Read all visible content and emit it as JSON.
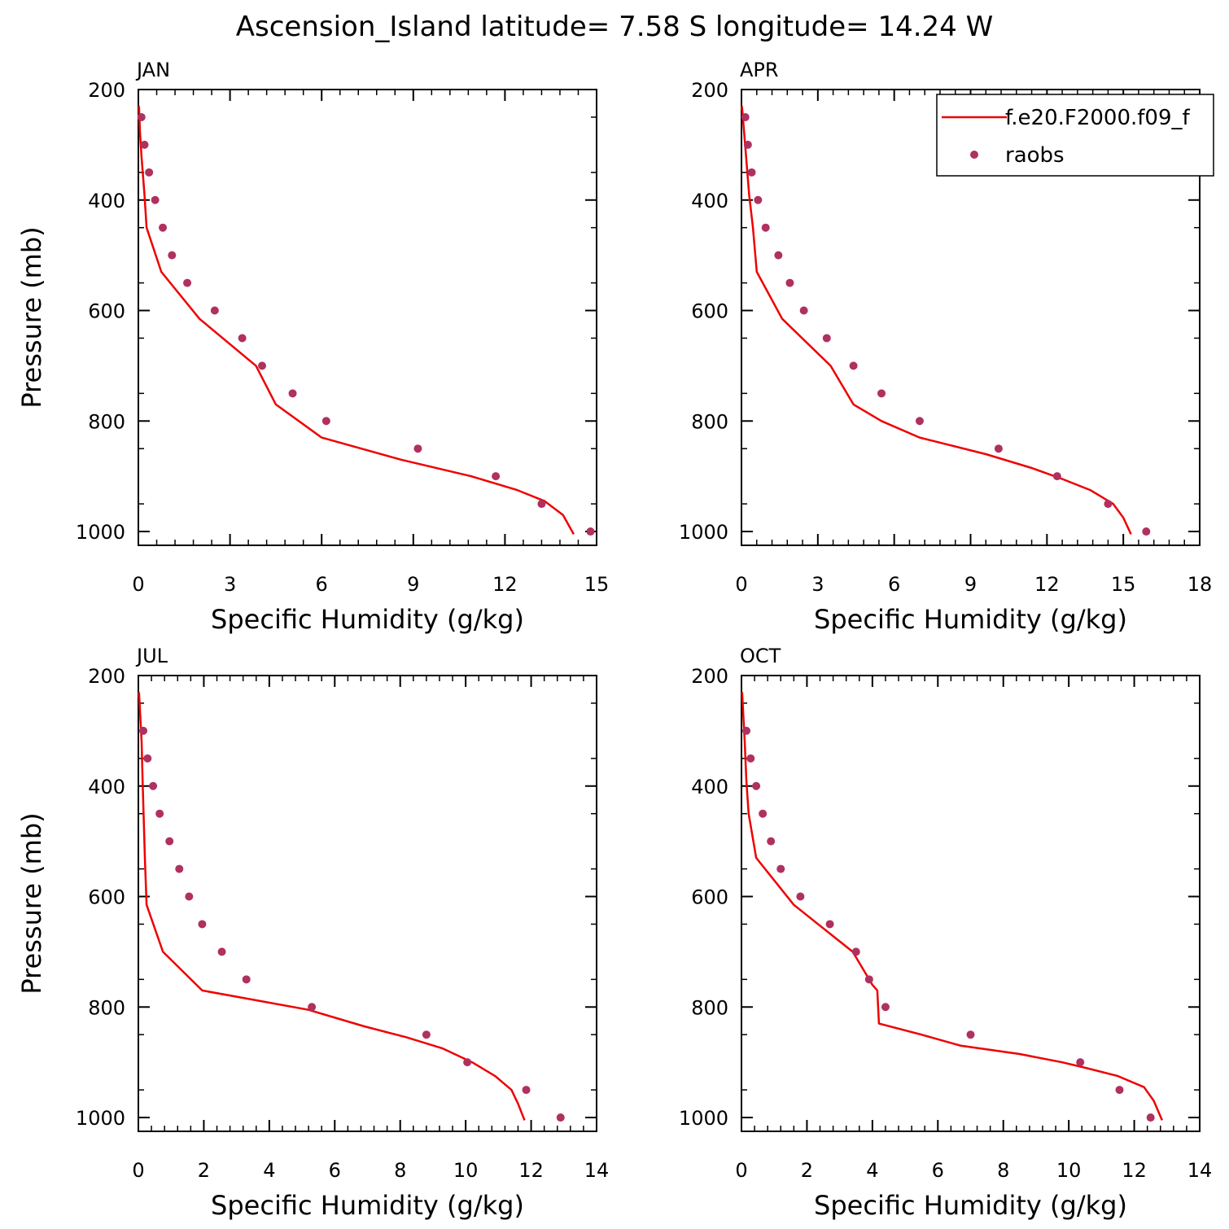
{
  "figure": {
    "title": "Ascension_Island  latitude= 7.58 S longitude= 14.24 W"
  },
  "colors": {
    "model_line": "#ee0000",
    "raobs_marker": "#b03060",
    "frame": "#000000"
  },
  "legend": {
    "placement": "top-right of APR panel (clipped at right edge)",
    "model_label": "f.e20.F2000.f09_f",
    "raobs_label": "raobs"
  },
  "chart_data": [
    {
      "type": "line",
      "panel_title": "JAN",
      "xlabel": "Specific Humidity (g/kg)",
      "ylabel": "Pressure (mb)",
      "xlim": [
        0,
        15
      ],
      "ylim": [
        200,
        1025
      ],
      "y_inverted": true,
      "xticks": [
        0,
        3,
        6,
        9,
        12,
        15
      ],
      "xtick_labels": [
        "0",
        "3",
        "6",
        "9",
        "12",
        "15"
      ],
      "yticks": [
        200,
        400,
        600,
        800,
        1000
      ],
      "ytick_labels": [
        "200",
        "400",
        "600",
        "800",
        "1000"
      ],
      "series": [
        {
          "kind": "line",
          "x": [
            0.02,
            0.05,
            0.1,
            0.2,
            0.27,
            0.75,
            2.0,
            3.85,
            4.5,
            6.0,
            8.6,
            10.9,
            12.4,
            13.3,
            13.9,
            14.25
          ],
          "y": [
            230,
            275,
            320,
            390,
            450,
            530,
            615,
            700,
            770,
            830,
            870,
            900,
            925,
            945,
            970,
            1005
          ]
        },
        {
          "kind": "scatter",
          "x": [
            0.1,
            0.2,
            0.35,
            0.55,
            0.8,
            1.1,
            1.6,
            2.5,
            3.4,
            4.05,
            5.05,
            6.15,
            9.15,
            11.7,
            13.2,
            14.8
          ],
          "y": [
            250,
            300,
            350,
            400,
            450,
            500,
            550,
            600,
            650,
            700,
            750,
            800,
            850,
            900,
            950,
            1000
          ]
        }
      ]
    },
    {
      "type": "line",
      "panel_title": "APR",
      "xlabel": "Specific Humidity (g/kg)",
      "ylabel": "",
      "xlim": [
        0,
        18
      ],
      "ylim": [
        200,
        1025
      ],
      "y_inverted": true,
      "xticks": [
        0,
        3,
        6,
        9,
        12,
        15,
        18
      ],
      "xtick_labels": [
        "0",
        "3",
        "6",
        "9",
        "12",
        "15",
        "18"
      ],
      "yticks": [
        200,
        400,
        600,
        800,
        1000
      ],
      "ytick_labels": [
        "200",
        "400",
        "600",
        "800",
        "1000"
      ],
      "series": [
        {
          "kind": "line",
          "x": [
            0.02,
            0.1,
            0.18,
            0.3,
            0.45,
            0.6,
            1.6,
            3.5,
            4.4,
            5.5,
            7.0,
            9.6,
            11.4,
            12.6,
            13.7,
            14.6,
            15.0,
            15.3
          ],
          "y": [
            230,
            275,
            320,
            390,
            450,
            530,
            615,
            700,
            770,
            800,
            830,
            860,
            885,
            905,
            925,
            950,
            975,
            1005
          ]
        },
        {
          "kind": "scatter",
          "x": [
            0.15,
            0.25,
            0.4,
            0.65,
            0.95,
            1.45,
            1.9,
            2.45,
            3.35,
            4.4,
            5.5,
            7.0,
            10.1,
            12.4,
            14.4,
            15.9
          ],
          "y": [
            250,
            300,
            350,
            400,
            450,
            500,
            550,
            600,
            650,
            700,
            750,
            800,
            850,
            900,
            950,
            1000
          ]
        }
      ]
    },
    {
      "type": "line",
      "panel_title": "JUL",
      "xlabel": "Specific Humidity (g/kg)",
      "ylabel": "Pressure (mb)",
      "xlim": [
        0,
        14
      ],
      "ylim": [
        200,
        1025
      ],
      "y_inverted": true,
      "xticks": [
        0,
        2,
        4,
        6,
        8,
        10,
        12,
        14
      ],
      "xtick_labels": [
        "0",
        "2",
        "4",
        "6",
        "8",
        "10",
        "12",
        "14"
      ],
      "series": [
        {
          "kind": "line",
          "x": [
            0.02,
            0.06,
            0.1,
            0.13,
            0.16,
            0.2,
            0.25,
            0.75,
            1.95,
            5.2,
            6.9,
            8.2,
            9.3,
            10.2,
            10.9,
            11.4,
            11.6,
            11.8
          ],
          "y": [
            230,
            275,
            320,
            390,
            450,
            530,
            615,
            700,
            770,
            805,
            835,
            855,
            875,
            900,
            925,
            950,
            975,
            1005
          ]
        },
        {
          "kind": "scatter",
          "x": [
            0.15,
            0.28,
            0.45,
            0.65,
            0.95,
            1.25,
            1.55,
            1.95,
            2.55,
            3.3,
            5.3,
            8.8,
            10.05,
            11.85,
            12.9
          ],
          "y": [
            300,
            350,
            400,
            450,
            500,
            550,
            600,
            650,
            700,
            750,
            800,
            850,
            900,
            950,
            1000
          ]
        }
      ],
      "yticks": [
        200,
        400,
        600,
        800,
        1000
      ],
      "ytick_labels": [
        "200",
        "400",
        "600",
        "800",
        "1000"
      ]
    },
    {
      "type": "line",
      "panel_title": "OCT",
      "xlabel": "Specific Humidity (g/kg)",
      "ylabel": "",
      "xlim": [
        0,
        14
      ],
      "ylim": [
        200,
        1025
      ],
      "y_inverted": true,
      "xticks": [
        0,
        2,
        4,
        6,
        8,
        10,
        12,
        14
      ],
      "xtick_labels": [
        "0",
        "2",
        "4",
        "6",
        "8",
        "10",
        "12",
        "14"
      ],
      "yticks": [
        200,
        400,
        600,
        800,
        1000
      ],
      "ytick_labels": [
        "200",
        "400",
        "600",
        "800",
        "1000"
      ],
      "series": [
        {
          "kind": "line",
          "x": [
            0.02,
            0.06,
            0.1,
            0.15,
            0.22,
            0.45,
            1.6,
            3.4,
            4.0,
            4.15,
            4.2,
            5.5,
            6.7,
            8.5,
            9.8,
            10.5,
            11.5,
            12.3,
            12.6,
            12.85
          ],
          "y": [
            230,
            275,
            320,
            390,
            450,
            530,
            615,
            700,
            760,
            770,
            830,
            850,
            870,
            885,
            900,
            910,
            925,
            945,
            970,
            1005
          ]
        },
        {
          "kind": "scatter",
          "x": [
            0.15,
            0.28,
            0.45,
            0.65,
            0.9,
            1.2,
            1.8,
            2.7,
            3.5,
            3.9,
            4.4,
            7.0,
            10.35,
            11.55,
            12.5
          ],
          "y": [
            300,
            350,
            400,
            450,
            500,
            550,
            600,
            650,
            700,
            750,
            800,
            850,
            900,
            950,
            1000
          ]
        }
      ]
    }
  ]
}
